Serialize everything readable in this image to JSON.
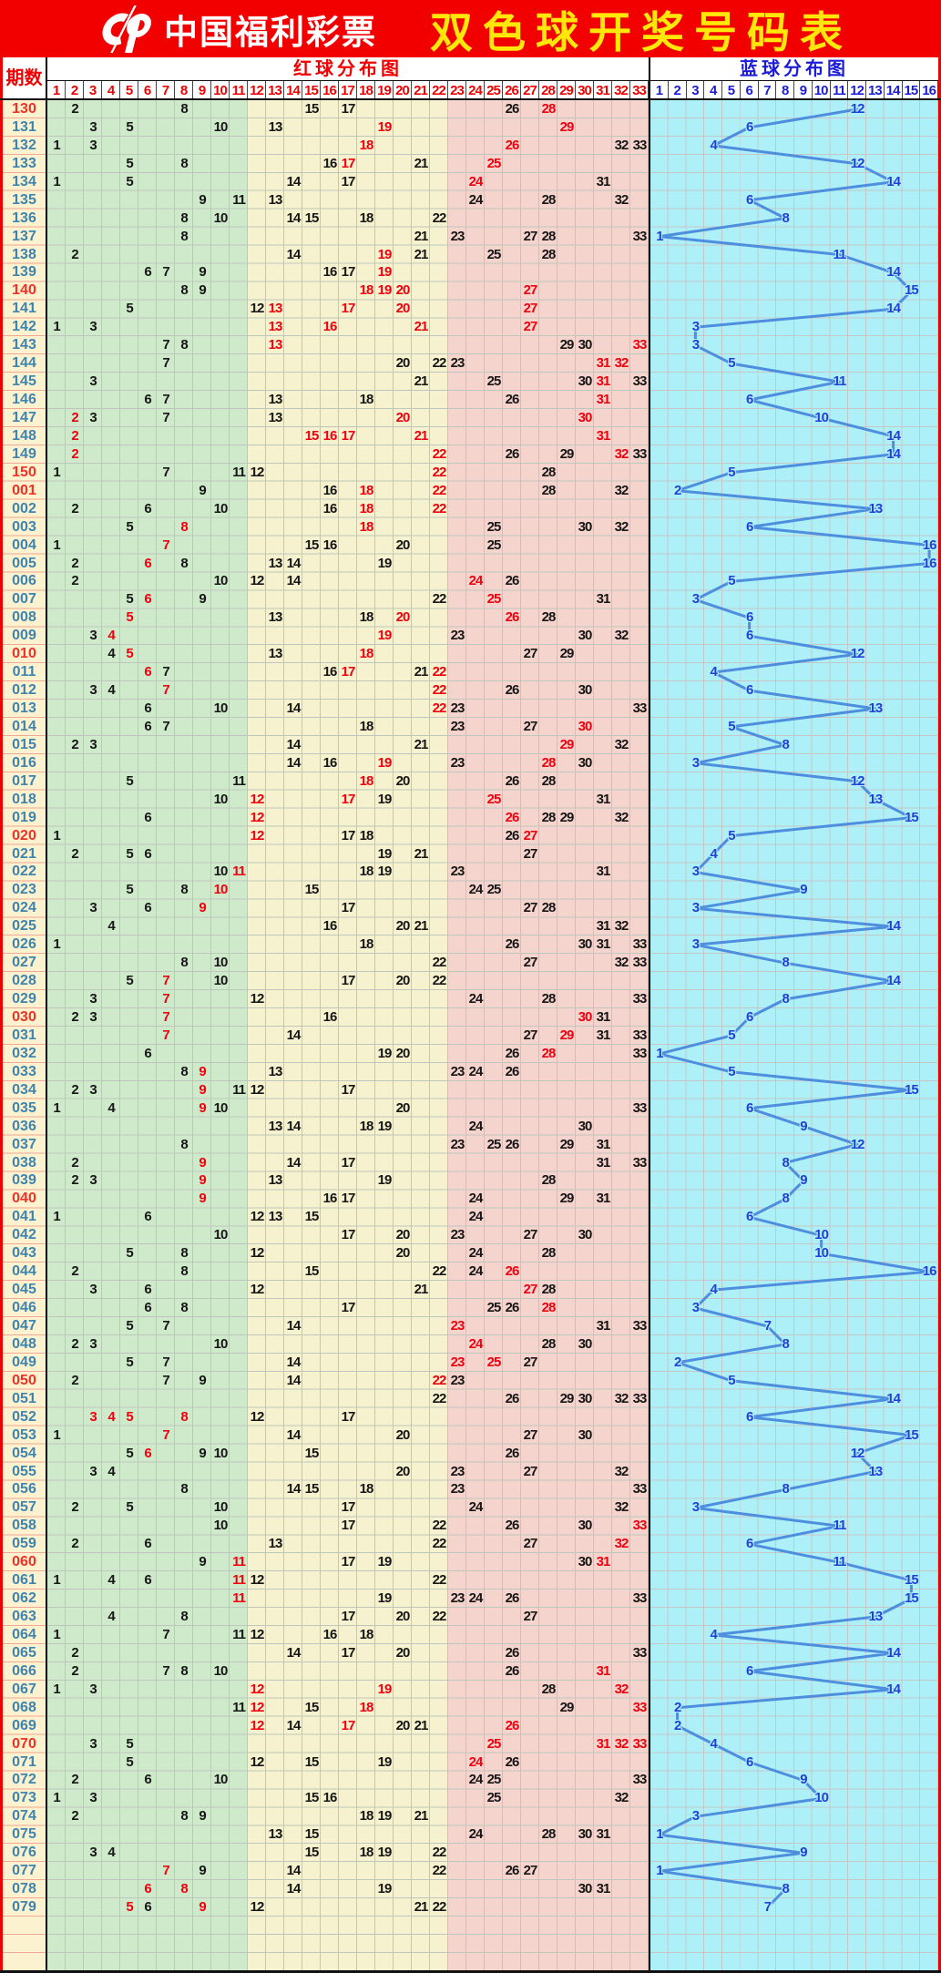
{
  "banner": {
    "brand": "中国福利彩票",
    "title": "双色球开奖号码表",
    "bg_color": "#f20000",
    "brand_color": "#ffffff",
    "title_color": "#ffe70a"
  },
  "header": {
    "period_label": "期数",
    "red_label": "红球分布图",
    "blue_label": "蓝球分布图",
    "red_cols": 33,
    "blue_cols": 16
  },
  "colors": {
    "period_col_bg": "#fcf2cf",
    "green_zone_bg": "#cfe9cb",
    "yellow_zone_bg": "#f6f2cf",
    "pink_zone_bg": "#f6d4ce",
    "cyan_zone_bg": "#aef0f8",
    "normal_number": "#161616",
    "hot_number": "#f2000e",
    "period_normal": "#3d84ae",
    "period_hot": "#f03226",
    "blue_number": "#2340d6",
    "trend_line": "#4e8ede"
  },
  "chart_data": {
    "type": "table",
    "title": "双色球开奖号码表",
    "red_zones": [
      {
        "from": 1,
        "to": 11,
        "zone": "green"
      },
      {
        "from": 12,
        "to": 22,
        "zone": "yellow"
      },
      {
        "from": 23,
        "to": 33,
        "zone": "pink"
      }
    ],
    "blue_range": [
      1,
      16
    ],
    "legend": "numbers marked * are shown in red (hot/repeat); period marked * shown in red",
    "rows": [
      {
        "p": "130*",
        "r": [
          "2",
          "8",
          "15",
          "17",
          "26",
          "28*"
        ],
        "b": 12
      },
      {
        "p": "131",
        "r": [
          "3",
          "5",
          "10",
          "13",
          "19*",
          "29*"
        ],
        "b": 6
      },
      {
        "p": "132",
        "r": [
          "1",
          "3",
          "18*",
          "26*",
          "32",
          "33"
        ],
        "b": 4
      },
      {
        "p": "133",
        "r": [
          "5",
          "8",
          "16",
          "17*",
          "21",
          "25*"
        ],
        "b": 12
      },
      {
        "p": "134",
        "r": [
          "1",
          "5",
          "14",
          "17",
          "24*",
          "31"
        ],
        "b": 14
      },
      {
        "p": "135",
        "r": [
          "9",
          "11",
          "13",
          "24",
          "28",
          "32"
        ],
        "b": 6
      },
      {
        "p": "136",
        "r": [
          "8",
          "10",
          "14",
          "15",
          "18",
          "22"
        ],
        "b": 8
      },
      {
        "p": "137",
        "r": [
          "8",
          "21",
          "23",
          "27",
          "28",
          "33"
        ],
        "b": 1
      },
      {
        "p": "138",
        "r": [
          "2",
          "14",
          "19*",
          "21",
          "25",
          "28"
        ],
        "b": 11
      },
      {
        "p": "139",
        "r": [
          "6",
          "7",
          "9",
          "16",
          "17",
          "19*"
        ],
        "b": 14
      },
      {
        "p": "140*",
        "r": [
          "8",
          "9",
          "18*",
          "19*",
          "20*",
          "27*"
        ],
        "b": 15
      },
      {
        "p": "141",
        "r": [
          "5",
          "12",
          "13*",
          "17*",
          "20*",
          "27*"
        ],
        "b": 14
      },
      {
        "p": "142",
        "r": [
          "1",
          "3",
          "13*",
          "16*",
          "21*",
          "27*"
        ],
        "b": 3
      },
      {
        "p": "143",
        "r": [
          "7",
          "8",
          "13*",
          "29",
          "30",
          "33*"
        ],
        "b": 3
      },
      {
        "p": "144",
        "r": [
          "7",
          "20",
          "22",
          "23",
          "31*",
          "32*"
        ],
        "b": 5
      },
      {
        "p": "145",
        "r": [
          "3",
          "21",
          "25",
          "30",
          "31*",
          "33"
        ],
        "b": 11
      },
      {
        "p": "146",
        "r": [
          "6",
          "7",
          "13",
          "18",
          "26",
          "31*"
        ],
        "b": 6
      },
      {
        "p": "147",
        "r": [
          "2*",
          "3",
          "7",
          "13",
          "20*",
          "30*"
        ],
        "b": 10
      },
      {
        "p": "148",
        "r": [
          "2*",
          "15*",
          "16*",
          "17*",
          "21*",
          "31*"
        ],
        "b": 14
      },
      {
        "p": "149",
        "r": [
          "2*",
          "22*",
          "26",
          "29",
          "32*",
          "33"
        ],
        "b": 14
      },
      {
        "p": "150*",
        "r": [
          "1",
          "7",
          "11",
          "12",
          "22*",
          "28"
        ],
        "b": 5
      },
      {
        "p": "001*",
        "r": [
          "9",
          "16",
          "18*",
          "22*",
          "28",
          "32"
        ],
        "b": 2
      },
      {
        "p": "002",
        "r": [
          "2",
          "6",
          "10",
          "16",
          "18*",
          "22*"
        ],
        "b": 13
      },
      {
        "p": "003",
        "r": [
          "5",
          "8*",
          "18*",
          "25",
          "30",
          "32"
        ],
        "b": 6
      },
      {
        "p": "004",
        "r": [
          "1",
          "7*",
          "15",
          "16",
          "20",
          "25"
        ],
        "b": 16
      },
      {
        "p": "005",
        "r": [
          "2",
          "6*",
          "8",
          "13",
          "14",
          "19"
        ],
        "b": 16
      },
      {
        "p": "006",
        "r": [
          "2",
          "10",
          "12",
          "14",
          "24*",
          "26"
        ],
        "b": 5
      },
      {
        "p": "007",
        "r": [
          "5",
          "6*",
          "9",
          "22",
          "25*",
          "31"
        ],
        "b": 3
      },
      {
        "p": "008",
        "r": [
          "5*",
          "13",
          "18",
          "20*",
          "26*",
          "28"
        ],
        "b": 6
      },
      {
        "p": "009",
        "r": [
          "3",
          "4*",
          "19*",
          "23",
          "30",
          "32"
        ],
        "b": 6
      },
      {
        "p": "010*",
        "r": [
          "4",
          "5*",
          "13",
          "18*",
          "27",
          "29"
        ],
        "b": 12
      },
      {
        "p": "011",
        "r": [
          "6*",
          "7",
          "16",
          "17*",
          "21",
          "22*"
        ],
        "b": 4
      },
      {
        "p": "012",
        "r": [
          "3",
          "4",
          "7*",
          "22*",
          "26",
          "30"
        ],
        "b": 6
      },
      {
        "p": "013",
        "r": [
          "6",
          "10",
          "14",
          "22*",
          "23",
          "33"
        ],
        "b": 13
      },
      {
        "p": "014",
        "r": [
          "6",
          "7",
          "18",
          "23",
          "27",
          "30*"
        ],
        "b": 5
      },
      {
        "p": "015",
        "r": [
          "2",
          "3",
          "14",
          "21",
          "29*",
          "32"
        ],
        "b": 8
      },
      {
        "p": "016",
        "r": [
          "14",
          "16",
          "19*",
          "23",
          "28*",
          "30"
        ],
        "b": 3
      },
      {
        "p": "017",
        "r": [
          "5",
          "11",
          "18*",
          "20",
          "26",
          "28"
        ],
        "b": 12
      },
      {
        "p": "018",
        "r": [
          "10",
          "12*",
          "17*",
          "19",
          "25*",
          "31"
        ],
        "b": 13
      },
      {
        "p": "019",
        "r": [
          "6",
          "12*",
          "26*",
          "28",
          "29",
          "32"
        ],
        "b": 15
      },
      {
        "p": "020*",
        "r": [
          "1",
          "12*",
          "17",
          "18",
          "26",
          "27*"
        ],
        "b": 5
      },
      {
        "p": "021",
        "r": [
          "2",
          "5",
          "6",
          "19",
          "21",
          "27"
        ],
        "b": 4
      },
      {
        "p": "022",
        "r": [
          "10",
          "11*",
          "18",
          "19",
          "23",
          "31"
        ],
        "b": 3
      },
      {
        "p": "023",
        "r": [
          "5",
          "8",
          "10*",
          "15",
          "24",
          "25"
        ],
        "b": 9
      },
      {
        "p": "024",
        "r": [
          "3",
          "6",
          "9*",
          "17",
          "27",
          "28"
        ],
        "b": 3
      },
      {
        "p": "025",
        "r": [
          "4",
          "16",
          "20",
          "21",
          "31",
          "32"
        ],
        "b": 14
      },
      {
        "p": "026",
        "r": [
          "1",
          "18",
          "26",
          "30",
          "31",
          "33"
        ],
        "b": 3
      },
      {
        "p": "027",
        "r": [
          "8",
          "10",
          "22",
          "27",
          "32",
          "33"
        ],
        "b": 8
      },
      {
        "p": "028",
        "r": [
          "5",
          "7*",
          "10",
          "17",
          "20",
          "22"
        ],
        "b": 14
      },
      {
        "p": "029",
        "r": [
          "3",
          "7*",
          "12",
          "24",
          "28",
          "33"
        ],
        "b": 8
      },
      {
        "p": "030*",
        "r": [
          "2",
          "3",
          "7*",
          "16",
          "30*",
          "31"
        ],
        "b": 6
      },
      {
        "p": "031",
        "r": [
          "7*",
          "14",
          "27",
          "29*",
          "31",
          "33"
        ],
        "b": 5
      },
      {
        "p": "032",
        "r": [
          "6",
          "19",
          "20",
          "26",
          "28*",
          "33"
        ],
        "b": 1
      },
      {
        "p": "033",
        "r": [
          "8",
          "9*",
          "13",
          "23",
          "24",
          "26"
        ],
        "b": 5
      },
      {
        "p": "034",
        "r": [
          "2",
          "3",
          "9*",
          "11",
          "12",
          "17"
        ],
        "b": 15
      },
      {
        "p": "035",
        "r": [
          "1",
          "4",
          "9*",
          "10",
          "20",
          "33"
        ],
        "b": 6
      },
      {
        "p": "036",
        "r": [
          "13",
          "14",
          "18",
          "19",
          "24",
          "30"
        ],
        "b": 9
      },
      {
        "p": "037",
        "r": [
          "8",
          "23",
          "25",
          "26",
          "29",
          "31"
        ],
        "b": 12
      },
      {
        "p": "038",
        "r": [
          "2",
          "9*",
          "14",
          "17",
          "31",
          "33"
        ],
        "b": 8
      },
      {
        "p": "039",
        "r": [
          "2",
          "3",
          "9*",
          "13",
          "19",
          "28"
        ],
        "b": 9
      },
      {
        "p": "040*",
        "r": [
          "9*",
          "16",
          "17",
          "24",
          "29",
          "31"
        ],
        "b": 8
      },
      {
        "p": "041",
        "r": [
          "1",
          "6",
          "12",
          "13",
          "15",
          "24"
        ],
        "b": 6
      },
      {
        "p": "042",
        "r": [
          "10",
          "17",
          "20",
          "23",
          "27",
          "30"
        ],
        "b": 10
      },
      {
        "p": "043",
        "r": [
          "5",
          "8",
          "12",
          "20",
          "24",
          "28"
        ],
        "b": 10
      },
      {
        "p": "044",
        "r": [
          "2",
          "8",
          "15",
          "22",
          "24",
          "26*"
        ],
        "b": 16
      },
      {
        "p": "045",
        "r": [
          "3",
          "6",
          "12",
          "21",
          "27*",
          "28"
        ],
        "b": 4
      },
      {
        "p": "046",
        "r": [
          "6",
          "8",
          "17",
          "25",
          "26",
          "28*"
        ],
        "b": 3
      },
      {
        "p": "047",
        "r": [
          "5",
          "7",
          "14",
          "23*",
          "31",
          "33"
        ],
        "b": 7
      },
      {
        "p": "048",
        "r": [
          "2",
          "3",
          "10",
          "24*",
          "28",
          "30"
        ],
        "b": 8
      },
      {
        "p": "049",
        "r": [
          "5",
          "7",
          "14",
          "23*",
          "25*",
          "27"
        ],
        "b": 2
      },
      {
        "p": "050*",
        "r": [
          "2",
          "7",
          "9",
          "14",
          "22*",
          "23"
        ],
        "b": 5
      },
      {
        "p": "051",
        "r": [
          "22",
          "26",
          "29",
          "30",
          "32",
          "33"
        ],
        "b": 14
      },
      {
        "p": "052",
        "r": [
          "3*",
          "4*",
          "5*",
          "8*",
          "12",
          "17"
        ],
        "b": 6
      },
      {
        "p": "053",
        "r": [
          "1",
          "7*",
          "14",
          "20",
          "27",
          "30"
        ],
        "b": 15
      },
      {
        "p": "054",
        "r": [
          "5",
          "6*",
          "9",
          "10",
          "15",
          "26"
        ],
        "b": 12
      },
      {
        "p": "055",
        "r": [
          "3",
          "4",
          "20",
          "23",
          "27",
          "32"
        ],
        "b": 13
      },
      {
        "p": "056",
        "r": [
          "8",
          "14",
          "15",
          "18",
          "23",
          "33"
        ],
        "b": 8
      },
      {
        "p": "057",
        "r": [
          "2",
          "5",
          "10",
          "17",
          "24",
          "32"
        ],
        "b": 3
      },
      {
        "p": "058",
        "r": [
          "10",
          "17",
          "22",
          "26",
          "30",
          "33*"
        ],
        "b": 11
      },
      {
        "p": "059",
        "r": [
          "2",
          "6",
          "13",
          "22",
          "27",
          "32*"
        ],
        "b": 6
      },
      {
        "p": "060*",
        "r": [
          "9",
          "11*",
          "17",
          "19",
          "30",
          "31*"
        ],
        "b": 11
      },
      {
        "p": "061",
        "r": [
          "1",
          "4",
          "6",
          "11*",
          "12",
          "22"
        ],
        "b": 15
      },
      {
        "p": "062",
        "r": [
          "11*",
          "19",
          "23",
          "24",
          "26",
          "33"
        ],
        "b": 15
      },
      {
        "p": "063",
        "r": [
          "4",
          "8",
          "17",
          "20",
          "22",
          "27"
        ],
        "b": 13
      },
      {
        "p": "064",
        "r": [
          "1",
          "7",
          "11",
          "12",
          "16",
          "18"
        ],
        "b": 4
      },
      {
        "p": "065",
        "r": [
          "2",
          "14",
          "17",
          "20",
          "26",
          "33"
        ],
        "b": 14
      },
      {
        "p": "066",
        "r": [
          "2",
          "7",
          "8",
          "10",
          "26",
          "31*"
        ],
        "b": 6
      },
      {
        "p": "067",
        "r": [
          "1",
          "3",
          "12*",
          "19*",
          "28",
          "32*"
        ],
        "b": 14
      },
      {
        "p": "068",
        "r": [
          "11",
          "12*",
          "15",
          "18*",
          "29",
          "33*"
        ],
        "b": 2
      },
      {
        "p": "069",
        "r": [
          "12*",
          "14",
          "17*",
          "20",
          "21",
          "26*"
        ],
        "b": 2
      },
      {
        "p": "070*",
        "r": [
          "3",
          "5",
          "25*",
          "31*",
          "32*",
          "33*"
        ],
        "b": 4
      },
      {
        "p": "071",
        "r": [
          "5",
          "12",
          "15",
          "19",
          "24*",
          "26"
        ],
        "b": 6
      },
      {
        "p": "072",
        "r": [
          "2",
          "6",
          "10",
          "24",
          "25",
          "33"
        ],
        "b": 9
      },
      {
        "p": "073",
        "r": [
          "1",
          "3",
          "15",
          "16",
          "25",
          "32"
        ],
        "b": 10
      },
      {
        "p": "074",
        "r": [
          "2",
          "8",
          "9",
          "18",
          "19",
          "21"
        ],
        "b": 3
      },
      {
        "p": "075",
        "r": [
          "13",
          "15",
          "24",
          "28",
          "30",
          "31"
        ],
        "b": 1
      },
      {
        "p": "076",
        "r": [
          "3",
          "4",
          "15",
          "18",
          "19",
          "22"
        ],
        "b": 9
      },
      {
        "p": "077",
        "r": [
          "7*",
          "9",
          "14",
          "22",
          "26",
          "27"
        ],
        "b": 1
      },
      {
        "p": "078",
        "r": [
          "6*",
          "8*",
          "14",
          "19",
          "30",
          "31"
        ],
        "b": 8
      },
      {
        "p": "079",
        "r": [
          "5*",
          "6",
          "9*",
          "12",
          "21",
          "22"
        ],
        "b": 7
      }
    ]
  }
}
